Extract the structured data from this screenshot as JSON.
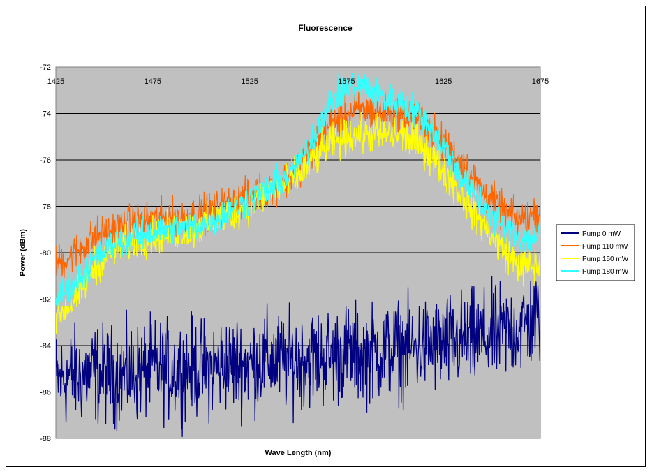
{
  "chart_data": {
    "type": "line",
    "title": "Fluorescence",
    "xlabel": "Wave Length (nm)",
    "ylabel": "Power (dBm)",
    "xlim": [
      1425,
      1675
    ],
    "ylim": [
      -88,
      -72
    ],
    "x_ticks": [
      "1425",
      "1475",
      "1525",
      "1575",
      "1625",
      "1675"
    ],
    "y_ticks": [
      "-72",
      "-74",
      "-76",
      "-78",
      "-80",
      "-82",
      "-84",
      "-86",
      "-88"
    ],
    "x_axis_position": "top",
    "grid": "horizontal",
    "plot_background": "#c0c0c0",
    "legend_position": "right",
    "series": [
      {
        "name": "Pump 0 mW",
        "color": "#000080",
        "x": [
          1425,
          1435,
          1445,
          1455,
          1465,
          1475,
          1485,
          1495,
          1505,
          1515,
          1525,
          1535,
          1545,
          1555,
          1565,
          1575,
          1585,
          1595,
          1605,
          1615,
          1625,
          1635,
          1645,
          1655,
          1665,
          1675
        ],
        "y": [
          -85.5,
          -85.3,
          -85.2,
          -85.3,
          -85.2,
          -85.0,
          -85.1,
          -84.9,
          -85.0,
          -84.8,
          -84.8,
          -84.6,
          -84.7,
          -84.5,
          -84.5,
          -84.3,
          -84.4,
          -84.2,
          -84.2,
          -84.0,
          -84.0,
          -83.8,
          -83.7,
          -83.5,
          -83.2,
          -82.8
        ],
        "noise": 1.8
      },
      {
        "name": "Pump 110 mW",
        "color": "#ff6600",
        "x": [
          1425,
          1435,
          1445,
          1455,
          1465,
          1475,
          1485,
          1495,
          1505,
          1515,
          1525,
          1535,
          1545,
          1555,
          1565,
          1575,
          1585,
          1595,
          1605,
          1615,
          1625,
          1635,
          1645,
          1655,
          1665,
          1675
        ],
        "y": [
          -80.5,
          -80.0,
          -79.3,
          -79.0,
          -78.7,
          -78.6,
          -78.5,
          -78.4,
          -78.2,
          -77.9,
          -77.6,
          -77.2,
          -76.8,
          -75.8,
          -74.6,
          -74.0,
          -73.9,
          -74.0,
          -74.0,
          -74.4,
          -75.3,
          -76.2,
          -77.3,
          -78.2,
          -78.6,
          -78.2
        ],
        "noise": 0.7
      },
      {
        "name": "Pump 150 mW",
        "color": "#ffff00",
        "x": [
          1425,
          1435,
          1445,
          1455,
          1465,
          1475,
          1485,
          1495,
          1505,
          1515,
          1525,
          1535,
          1545,
          1555,
          1565,
          1575,
          1585,
          1595,
          1605,
          1615,
          1625,
          1635,
          1645,
          1655,
          1665,
          1675
        ],
        "y": [
          -82.8,
          -82.0,
          -80.6,
          -79.8,
          -79.5,
          -79.3,
          -79.1,
          -79.0,
          -78.7,
          -78.3,
          -77.9,
          -77.4,
          -77.0,
          -76.3,
          -75.4,
          -75.0,
          -74.9,
          -74.9,
          -75.0,
          -75.5,
          -76.4,
          -77.6,
          -78.7,
          -79.8,
          -80.6,
          -80.6
        ],
        "noise": 0.7
      },
      {
        "name": "Pump 180 mW",
        "color": "#33ffff",
        "x": [
          1425,
          1435,
          1445,
          1455,
          1465,
          1475,
          1485,
          1495,
          1505,
          1515,
          1525,
          1535,
          1545,
          1555,
          1565,
          1575,
          1585,
          1595,
          1605,
          1615,
          1625,
          1635,
          1645,
          1655,
          1665,
          1675
        ],
        "y": [
          -82.0,
          -81.3,
          -80.3,
          -79.6,
          -79.3,
          -79.1,
          -79.0,
          -78.9,
          -78.6,
          -78.2,
          -77.7,
          -77.2,
          -76.7,
          -75.6,
          -73.6,
          -72.9,
          -72.8,
          -73.4,
          -73.6,
          -74.2,
          -75.4,
          -76.8,
          -77.9,
          -78.8,
          -79.4,
          -79.3
        ],
        "noise": 0.6
      }
    ]
  }
}
